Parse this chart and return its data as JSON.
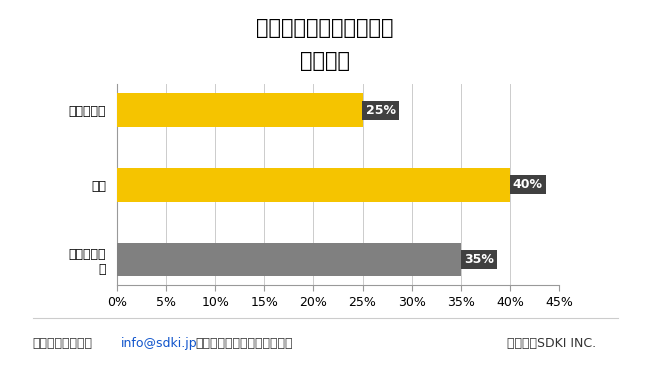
{
  "title_line1": "治療薬モニタリング市場",
  "title_line2": "地域貢献",
  "categories": [
    "ヨーロッパ",
    "北米",
    "アジア太平\n洋"
  ],
  "values": [
    25,
    40,
    35
  ],
  "bar_colors": [
    "#F5C400",
    "#F5C400",
    "#808080"
  ],
  "label_texts": [
    "25%",
    "40%",
    "35%"
  ],
  "label_bg_color": "#404040",
  "label_text_color": "#ffffff",
  "xlim": [
    0,
    45
  ],
  "xtick_values": [
    0,
    5,
    10,
    15,
    20,
    25,
    30,
    35,
    40,
    45
  ],
  "xtick_labels": [
    "0%",
    "5%",
    "10%",
    "15%",
    "20%",
    "25%",
    "30%",
    "35%",
    "40%",
    "45%"
  ],
  "background_color": "#ffffff",
  "footer_left_plain": "詳細については、",
  "footer_left_link": "info@sdki.jp",
  "footer_left_after": "にメールをお送りください。",
  "footer_right": "ソース：SDKI INC.",
  "bar_height": 0.45,
  "title_fontsize": 15,
  "axis_fontsize": 9,
  "label_fontsize": 9,
  "footer_fontsize": 9
}
